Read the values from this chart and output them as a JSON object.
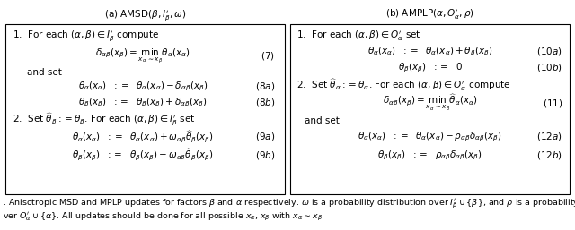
{
  "fig_width": 6.4,
  "fig_height": 2.57,
  "dpi": 100,
  "background_color": "#ffffff",
  "fontsize": 7.5,
  "caption_fontsize": 6.8
}
